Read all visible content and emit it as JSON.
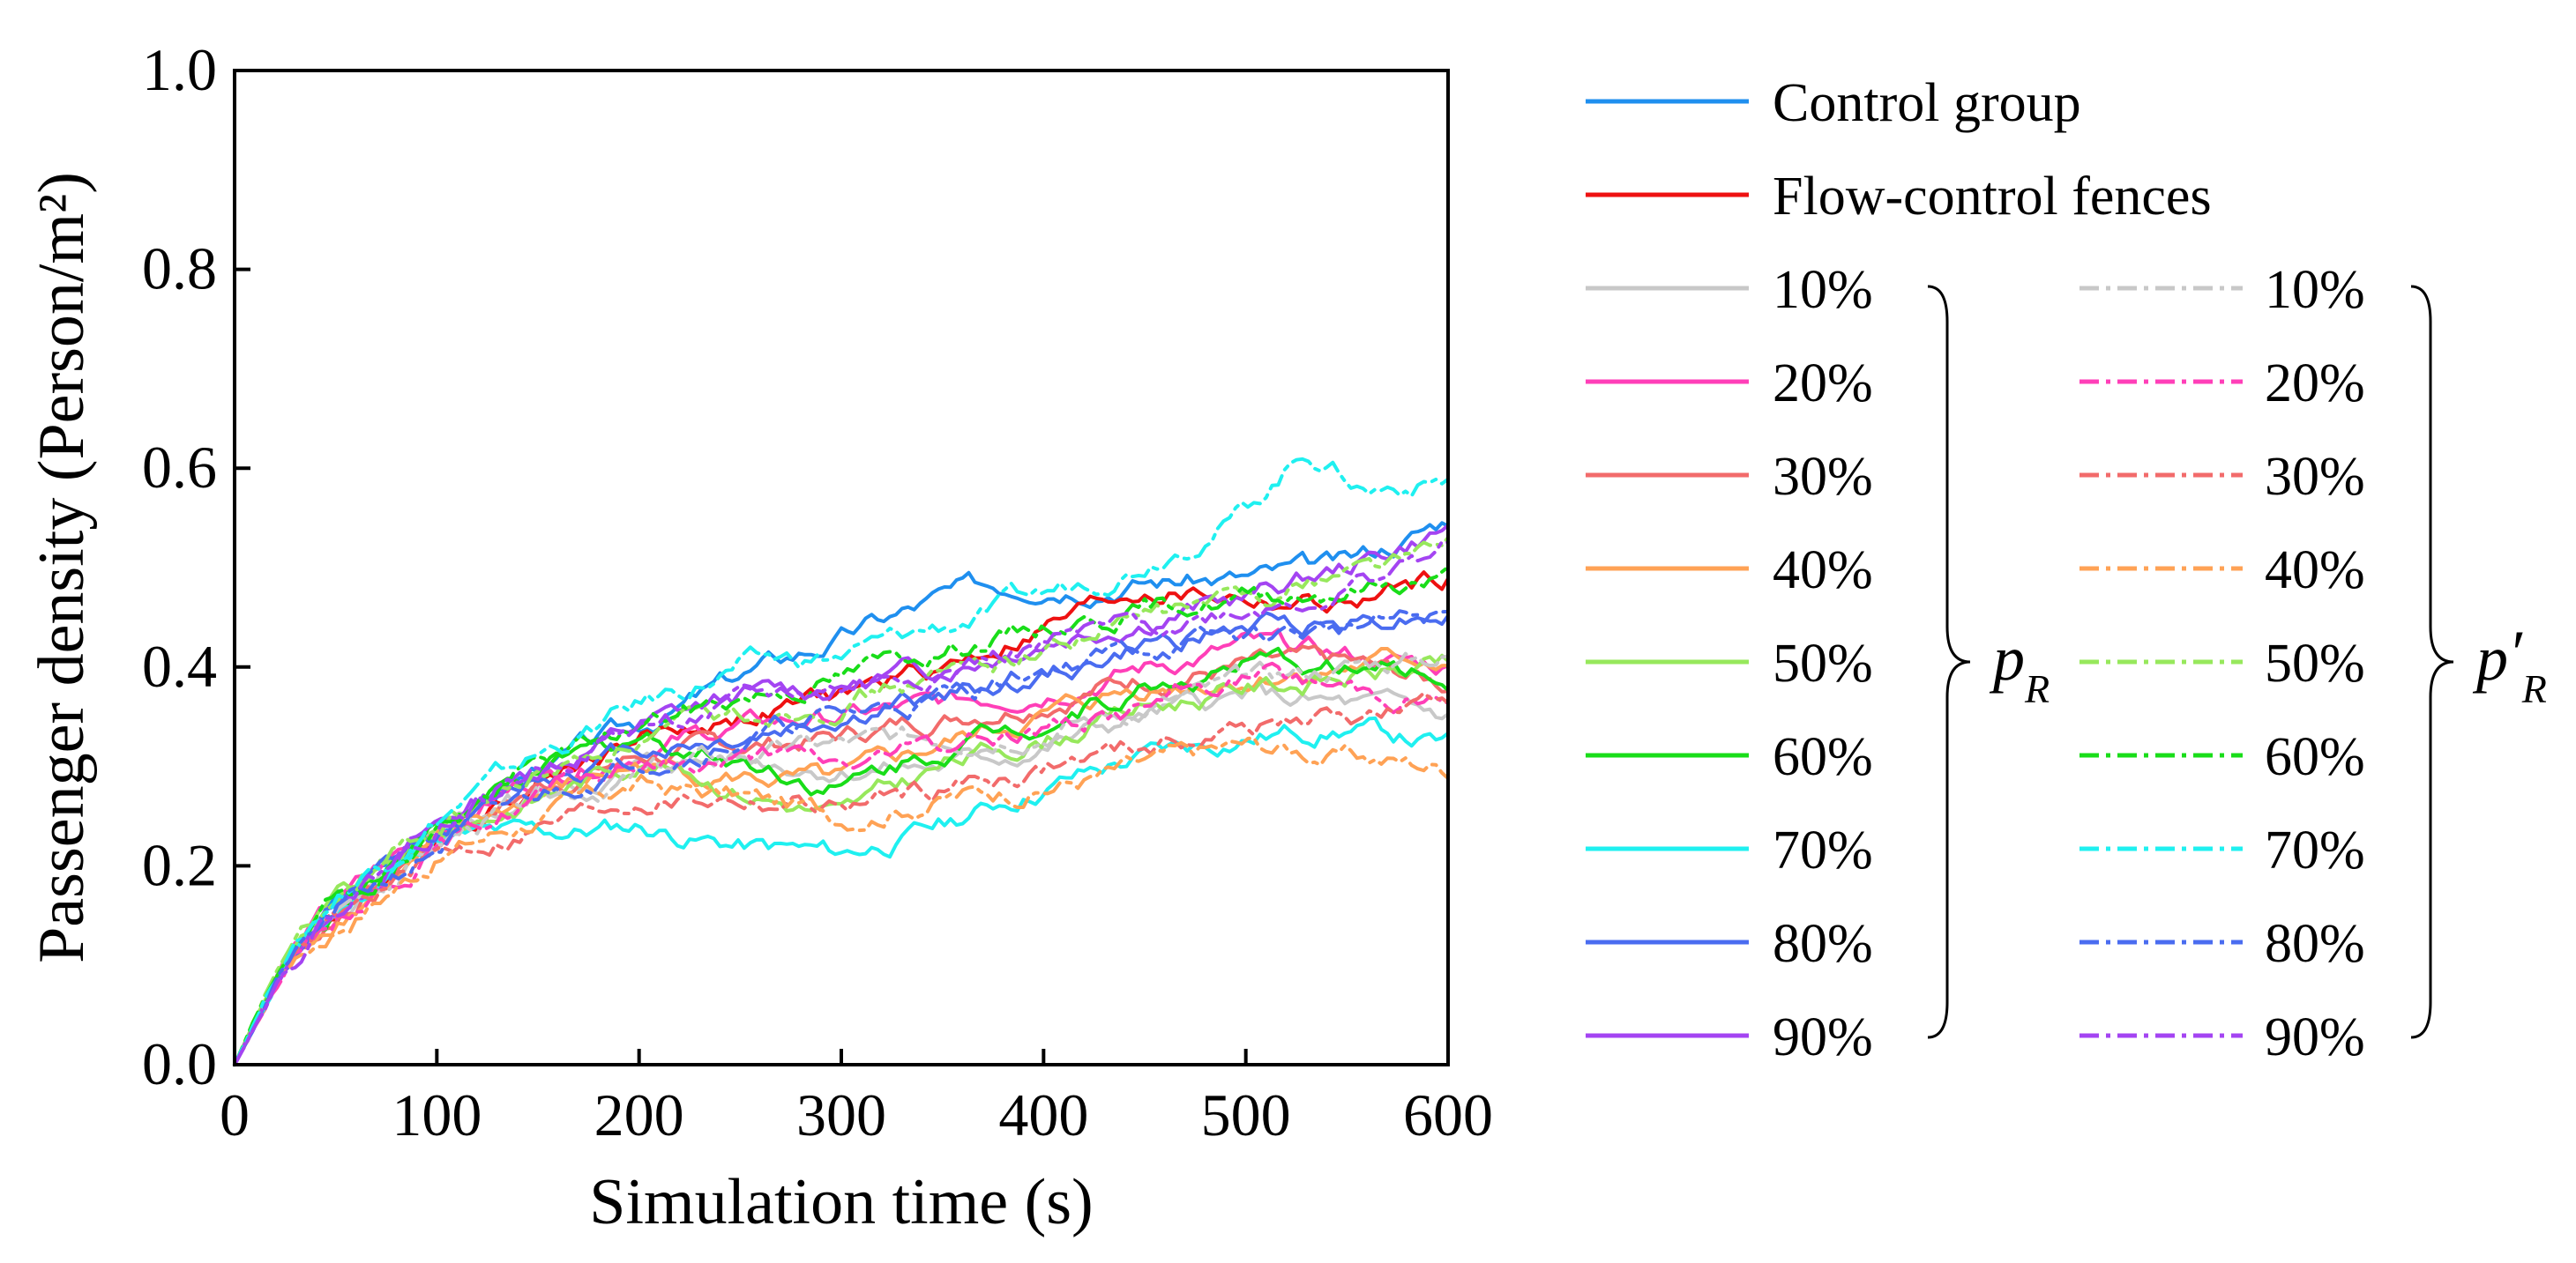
{
  "chart_data": {
    "type": "line",
    "xlabel": "Simulation time (s)",
    "ylabel": "Passenger density (Person/m²)",
    "xlim": [
      0,
      600
    ],
    "ylim": [
      0,
      1.0
    ],
    "xticks": [
      0,
      100,
      200,
      300,
      400,
      500,
      600
    ],
    "yticks": [
      "0.0",
      "0.2",
      "0.4",
      "0.6",
      "0.8",
      "1.0"
    ],
    "legend_placement": "right",
    "group_labels": {
      "solid": {
        "main": "p",
        "sub": "R",
        "prime": ""
      },
      "dashdot": {
        "main": "p",
        "sub": "R",
        "prime": "′"
      }
    },
    "series": [
      {
        "name": "Control group",
        "group": "base",
        "color": "#1f8fef",
        "style": "solid",
        "x": [
          0,
          25,
          50,
          100,
          150,
          200,
          250,
          300,
          350,
          400,
          450,
          500,
          550,
          600
        ],
        "y": [
          0,
          0.1,
          0.16,
          0.24,
          0.3,
          0.34,
          0.39,
          0.43,
          0.47,
          0.49,
          0.49,
          0.49,
          0.5,
          0.55
        ]
      },
      {
        "name": "Flow-control fences",
        "group": "base",
        "color": "#ee1111",
        "style": "solid",
        "x": [
          0,
          25,
          50,
          100,
          150,
          200,
          250,
          300,
          350,
          400,
          450,
          500,
          550,
          600
        ],
        "y": [
          0,
          0.1,
          0.15,
          0.23,
          0.29,
          0.33,
          0.35,
          0.37,
          0.4,
          0.44,
          0.48,
          0.47,
          0.46,
          0.49
        ]
      },
      {
        "name": "10%",
        "group": "pR",
        "color": "#c8c8c8",
        "style": "solid",
        "x": [
          0,
          25,
          50,
          100,
          150,
          200,
          250,
          300,
          350,
          400,
          450,
          500,
          550,
          600
        ],
        "y": [
          0,
          0.1,
          0.15,
          0.22,
          0.27,
          0.3,
          0.31,
          0.3,
          0.3,
          0.32,
          0.35,
          0.37,
          0.36,
          0.35
        ]
      },
      {
        "name": "20%",
        "group": "pR",
        "color": "#ff3fb8",
        "style": "solid",
        "x": [
          0,
          25,
          50,
          100,
          150,
          200,
          250,
          300,
          350,
          400,
          450,
          500,
          550,
          600
        ],
        "y": [
          0,
          0.11,
          0.16,
          0.24,
          0.29,
          0.32,
          0.34,
          0.35,
          0.36,
          0.38,
          0.4,
          0.42,
          0.41,
          0.4
        ]
      },
      {
        "name": "30%",
        "group": "pR",
        "color": "#f26b6b",
        "style": "solid",
        "x": [
          0,
          25,
          50,
          100,
          150,
          200,
          250,
          300,
          350,
          400,
          450,
          500,
          550,
          600
        ],
        "y": [
          0,
          0.1,
          0.15,
          0.23,
          0.28,
          0.31,
          0.32,
          0.33,
          0.35,
          0.37,
          0.39,
          0.4,
          0.4,
          0.38
        ]
      },
      {
        "name": "40%",
        "group": "pR",
        "color": "#ffa255",
        "style": "solid",
        "x": [
          0,
          25,
          50,
          100,
          150,
          200,
          250,
          300,
          350,
          400,
          450,
          500,
          550,
          600
        ],
        "y": [
          0,
          0.1,
          0.15,
          0.22,
          0.27,
          0.3,
          0.29,
          0.28,
          0.32,
          0.35,
          0.38,
          0.39,
          0.4,
          0.41
        ]
      },
      {
        "name": "50%",
        "group": "pR",
        "color": "#97e85c",
        "style": "solid",
        "x": [
          0,
          25,
          50,
          100,
          150,
          200,
          250,
          300,
          350,
          400,
          450,
          500,
          550,
          600
        ],
        "y": [
          0,
          0.11,
          0.16,
          0.23,
          0.27,
          0.31,
          0.28,
          0.25,
          0.3,
          0.33,
          0.36,
          0.38,
          0.39,
          0.4
        ]
      },
      {
        "name": "60%",
        "group": "pR",
        "color": "#19dd19",
        "style": "solid",
        "x": [
          0,
          25,
          50,
          100,
          150,
          200,
          250,
          300,
          350,
          400,
          450,
          500,
          550,
          600
        ],
        "y": [
          0,
          0.1,
          0.16,
          0.24,
          0.29,
          0.33,
          0.31,
          0.28,
          0.32,
          0.35,
          0.38,
          0.4,
          0.4,
          0.39
        ]
      },
      {
        "name": "70%",
        "group": "pR",
        "color": "#1ff0f0",
        "style": "solid",
        "x": [
          0,
          25,
          50,
          100,
          150,
          200,
          250,
          300,
          350,
          400,
          450,
          500,
          550,
          600
        ],
        "y": [
          0,
          0.1,
          0.15,
          0.23,
          0.23,
          0.24,
          0.22,
          0.21,
          0.24,
          0.28,
          0.31,
          0.33,
          0.34,
          0.32
        ]
      },
      {
        "name": "80%",
        "group": "pR",
        "color": "#4a6cf0",
        "style": "solid",
        "x": [
          0,
          25,
          50,
          100,
          150,
          200,
          250,
          300,
          350,
          400,
          450,
          500,
          550,
          600
        ],
        "y": [
          0,
          0.1,
          0.15,
          0.23,
          0.29,
          0.32,
          0.33,
          0.35,
          0.37,
          0.39,
          0.42,
          0.44,
          0.45,
          0.46
        ]
      },
      {
        "name": "90%",
        "group": "pR",
        "color": "#a444f2",
        "style": "solid",
        "x": [
          0,
          25,
          50,
          100,
          150,
          200,
          250,
          300,
          350,
          400,
          450,
          500,
          550,
          600
        ],
        "y": [
          0,
          0.1,
          0.16,
          0.24,
          0.3,
          0.34,
          0.37,
          0.38,
          0.4,
          0.43,
          0.45,
          0.47,
          0.5,
          0.54
        ]
      },
      {
        "name": "10%",
        "group": "pR_prime",
        "color": "#c8c8c8",
        "style": "dashdot",
        "x": [
          0,
          25,
          50,
          100,
          150,
          200,
          250,
          300,
          350,
          400,
          450,
          500,
          550,
          600
        ],
        "y": [
          0,
          0.1,
          0.15,
          0.22,
          0.27,
          0.29,
          0.31,
          0.32,
          0.33,
          0.34,
          0.36,
          0.38,
          0.4,
          0.41
        ]
      },
      {
        "name": "20%",
        "group": "pR_prime",
        "color": "#ff3fb8",
        "style": "dashdot",
        "x": [
          0,
          25,
          50,
          100,
          150,
          200,
          250,
          300,
          350,
          400,
          450,
          500,
          550,
          600
        ],
        "y": [
          0,
          0.1,
          0.15,
          0.22,
          0.27,
          0.3,
          0.31,
          0.3,
          0.32,
          0.34,
          0.36,
          0.39,
          0.38,
          0.37
        ]
      },
      {
        "name": "30%",
        "group": "pR_prime",
        "color": "#f26b6b",
        "style": "dashdot",
        "x": [
          0,
          25,
          50,
          100,
          150,
          200,
          250,
          300,
          350,
          400,
          450,
          500,
          550,
          600
        ],
        "y": [
          0,
          0.1,
          0.14,
          0.21,
          0.24,
          0.27,
          0.27,
          0.26,
          0.28,
          0.3,
          0.32,
          0.34,
          0.35,
          0.36
        ]
      },
      {
        "name": "40%",
        "group": "pR_prime",
        "color": "#ffa255",
        "style": "dashdot",
        "x": [
          0,
          25,
          50,
          100,
          150,
          200,
          250,
          300,
          350,
          400,
          450,
          500,
          550,
          600
        ],
        "y": [
          0,
          0.1,
          0.14,
          0.21,
          0.25,
          0.28,
          0.27,
          0.25,
          0.27,
          0.28,
          0.3,
          0.32,
          0.31,
          0.3
        ]
      },
      {
        "name": "50%",
        "group": "pR_prime",
        "color": "#97e85c",
        "style": "dashdot",
        "x": [
          0,
          25,
          50,
          100,
          150,
          200,
          250,
          300,
          350,
          400,
          450,
          500,
          550,
          600
        ],
        "y": [
          0,
          0.11,
          0.16,
          0.24,
          0.29,
          0.33,
          0.35,
          0.37,
          0.39,
          0.42,
          0.45,
          0.47,
          0.5,
          0.52
        ]
      },
      {
        "name": "60%",
        "group": "pR_prime",
        "color": "#19dd19",
        "style": "dashdot",
        "x": [
          0,
          25,
          50,
          100,
          150,
          200,
          250,
          300,
          350,
          400,
          450,
          500,
          550,
          600
        ],
        "y": [
          0,
          0.11,
          0.16,
          0.24,
          0.3,
          0.34,
          0.37,
          0.39,
          0.42,
          0.44,
          0.46,
          0.47,
          0.48,
          0.49
        ]
      },
      {
        "name": "70%",
        "group": "pR_prime",
        "color": "#1ff0f0",
        "style": "dashdot",
        "x": [
          0,
          25,
          50,
          100,
          150,
          200,
          250,
          300,
          350,
          400,
          450,
          500,
          530,
          560,
          600
        ],
        "y": [
          0,
          0.11,
          0.17,
          0.25,
          0.31,
          0.36,
          0.4,
          0.41,
          0.44,
          0.47,
          0.51,
          0.56,
          0.62,
          0.58,
          0.59
        ]
      },
      {
        "name": "80%",
        "group": "pR_prime",
        "color": "#4a6cf0",
        "style": "dashdot",
        "x": [
          0,
          25,
          50,
          100,
          150,
          200,
          250,
          300,
          350,
          400,
          450,
          500,
          550,
          600
        ],
        "y": [
          0,
          0.1,
          0.15,
          0.22,
          0.27,
          0.31,
          0.33,
          0.35,
          0.37,
          0.4,
          0.42,
          0.43,
          0.44,
          0.45
        ]
      },
      {
        "name": "90%",
        "group": "pR_prime",
        "color": "#a444f2",
        "style": "dashdot",
        "x": [
          0,
          25,
          50,
          100,
          150,
          200,
          250,
          300,
          350,
          400,
          450,
          500,
          550,
          600
        ],
        "y": [
          0,
          0.1,
          0.16,
          0.24,
          0.3,
          0.34,
          0.36,
          0.38,
          0.4,
          0.42,
          0.44,
          0.46,
          0.48,
          0.52
        ]
      }
    ]
  }
}
